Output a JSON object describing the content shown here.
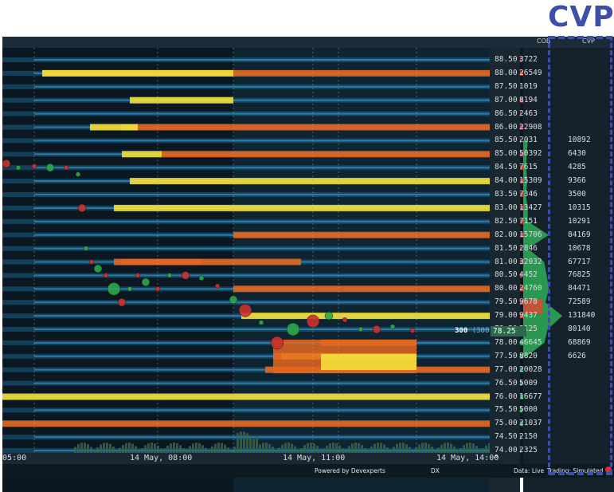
{
  "annotation": {
    "label": "CVP",
    "color": "#3e4fa8"
  },
  "header": {
    "cob_label": "COB",
    "cvp_label": "CVP"
  },
  "price_ladder": [
    {
      "price": "88.50",
      "cob": "3722"
    },
    {
      "price": "88.00",
      "cob": "26549"
    },
    {
      "price": "87.50",
      "cob": "1019"
    },
    {
      "price": "87.00",
      "cob": "8194"
    },
    {
      "price": "86.50",
      "cob": "2463"
    },
    {
      "price": "86.00",
      "cob": "22908"
    },
    {
      "price": "85.50",
      "cob": "2031"
    },
    {
      "price": "85.00",
      "cob": "50392"
    },
    {
      "price": "84.50",
      "cob": "7615"
    },
    {
      "price": "84.00",
      "cob": "15309"
    },
    {
      "price": "83.50",
      "cob": "7346"
    },
    {
      "price": "83.00",
      "cob": "13427"
    },
    {
      "price": "82.50",
      "cob": "7151"
    },
    {
      "price": "82.00",
      "cob": "15706"
    },
    {
      "price": "81.50",
      "cob": "2846"
    },
    {
      "price": "81.00",
      "cob": "32032"
    },
    {
      "price": "80.50",
      "cob": "4452"
    },
    {
      "price": "80.00",
      "cob": "24760"
    },
    {
      "price": "79.50",
      "cob": "9678"
    },
    {
      "price": "79.00",
      "cob": "9437"
    },
    {
      "price": "78.50",
      "cob": "5125"
    },
    {
      "price": "78.00",
      "cob": "46645"
    },
    {
      "price": "77.50",
      "cob": "8820"
    },
    {
      "price": "77.00",
      "cob": "20028"
    },
    {
      "price": "76.50",
      "cob": "5009"
    },
    {
      "price": "76.00",
      "cob": "16677"
    },
    {
      "price": "75.50",
      "cob": "5000"
    },
    {
      "price": "75.00",
      "cob": "21037"
    },
    {
      "price": "74.50",
      "cob": "2150"
    },
    {
      "price": "74.00",
      "cob": "2325"
    }
  ],
  "cvp_values": [
    "10892",
    "6430",
    "4285",
    "9366",
    "3500",
    "10315",
    "10291",
    "84169",
    "10678",
    "67717",
    "76825",
    "84471",
    "72589",
    "131840",
    "80140",
    "68869",
    "6626"
  ],
  "last_trade": {
    "size_label": "300",
    "size_paren": "(300)",
    "price": "78.25"
  },
  "time_axis": [
    "05:00",
    "14 May, 08:00",
    "14 May, 11:00",
    "14 May, 14:00"
  ],
  "footer": {
    "powered_by": "Powered by Devexperts",
    "dx_label": "DX",
    "data_status": "Data: Live",
    "trading_status": "Trading: Simulated"
  },
  "colors": {
    "background": "#0b1822",
    "heat_blue": "#1f6f9e",
    "heat_orange": "#e3661e",
    "heat_yellow": "#f4e03a",
    "buy_bubble": "#2ca84a",
    "sell_bubble": "#c8322e",
    "cob_bar": "#e03b30",
    "cvp_fill": "#2fb65a",
    "cvp_sell_fill": "#e3452f"
  }
}
